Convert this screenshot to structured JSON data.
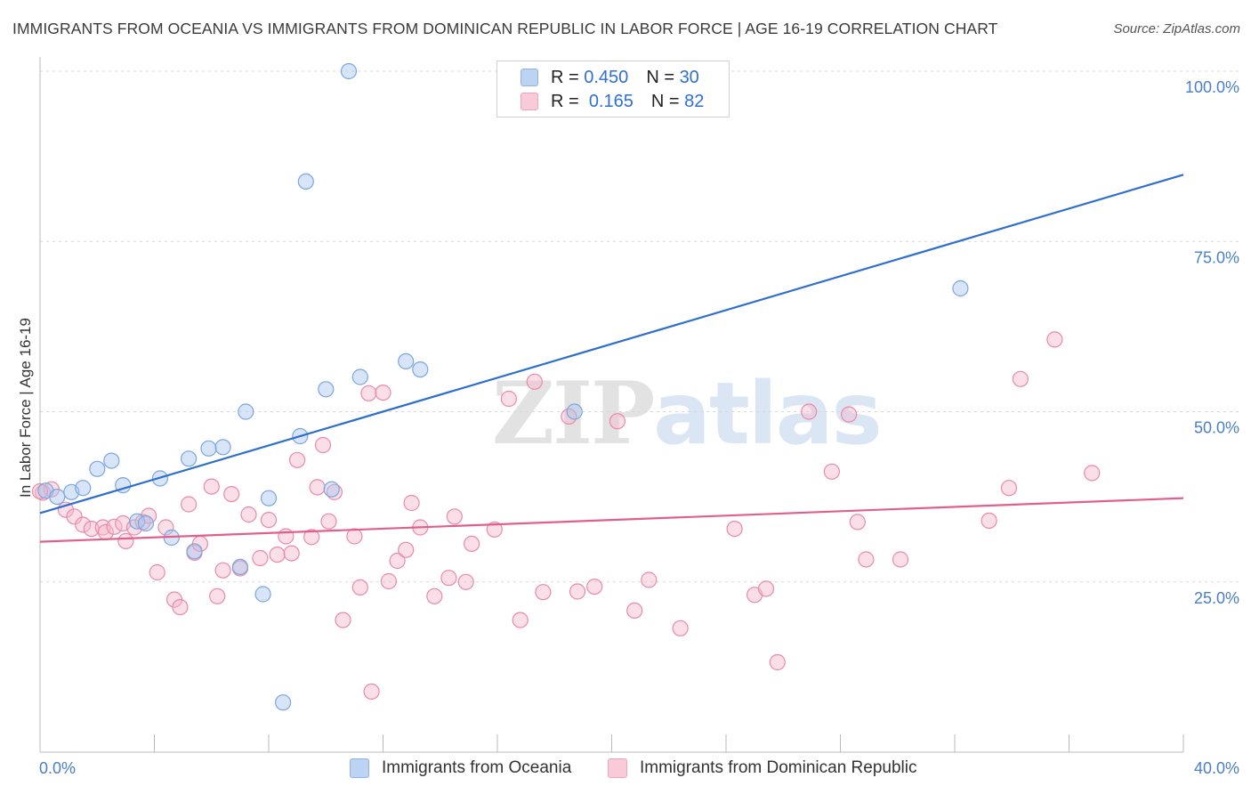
{
  "title": "IMMIGRANTS FROM OCEANIA VS IMMIGRANTS FROM DOMINICAN REPUBLIC IN LABOR FORCE | AGE 16-19 CORRELATION CHART",
  "source": "Source: ZipAtlas.com",
  "watermark": {
    "zip": "ZIP",
    "atlas": "atlas"
  },
  "legend": {
    "rows": [
      {
        "r_label": "R = ",
        "r_value": "0.450",
        "n_label": "N = ",
        "n_value": "30"
      },
      {
        "r_label": "R = ",
        "r_value": "0.165",
        "n_label": "N = ",
        "n_value": "82"
      }
    ]
  },
  "chart_data": {
    "type": "scatter",
    "title": "IMMIGRANTS FROM OCEANIA VS IMMIGRANTS FROM DOMINICAN REPUBLIC IN LABOR FORCE | AGE 16-19 CORRELATION CHART",
    "xlabel": "",
    "ylabel": "In Labor Force | Age 16-19",
    "xlim": [
      0,
      40
    ],
    "ylim": [
      0,
      102
    ],
    "x_tick_labels": [
      "0.0%",
      "40.0%"
    ],
    "y_ticks": [
      25,
      50,
      75,
      100
    ],
    "y_tick_labels": [
      "25.0%",
      "50.0%",
      "75.0%",
      "100.0%"
    ],
    "grid": true,
    "legend_position": "top-center",
    "series": [
      {
        "name": "Immigrants from Oceania",
        "color": "#a8c6ef",
        "stroke": "#7aa6de",
        "trend_color": "#2e6fce",
        "trend": {
          "x": [
            0,
            40
          ],
          "y": [
            35.1,
            84.8
          ]
        },
        "points": [
          [
            0.2,
            38.4
          ],
          [
            0.6,
            37.5
          ],
          [
            1.1,
            38.2
          ],
          [
            1.5,
            38.8
          ],
          [
            2.0,
            41.6
          ],
          [
            2.5,
            42.8
          ],
          [
            2.9,
            39.2
          ],
          [
            3.4,
            33.9
          ],
          [
            3.7,
            33.6
          ],
          [
            4.2,
            40.2
          ],
          [
            4.6,
            31.5
          ],
          [
            5.2,
            43.1
          ],
          [
            5.4,
            29.5
          ],
          [
            5.9,
            44.6
          ],
          [
            6.4,
            44.8
          ],
          [
            7.0,
            27.2
          ],
          [
            7.2,
            50.0
          ],
          [
            7.8,
            23.2
          ],
          [
            8.0,
            37.3
          ],
          [
            9.1,
            46.4
          ],
          [
            9.3,
            83.8
          ],
          [
            10.0,
            53.3
          ],
          [
            10.2,
            38.6
          ],
          [
            10.8,
            100.0
          ],
          [
            11.2,
            55.1
          ],
          [
            12.8,
            57.4
          ],
          [
            13.3,
            56.2
          ],
          [
            18.7,
            50.0
          ],
          [
            32.2,
            68.1
          ],
          [
            8.5,
            7.3
          ]
        ]
      },
      {
        "name": "Immigrants from Dominican Republic",
        "color": "#f5b9cc",
        "stroke": "#e98aa8",
        "trend_color": "#e0608a",
        "trend": {
          "x": [
            0,
            40
          ],
          "y": [
            30.9,
            37.3
          ]
        },
        "points": [
          [
            0.1,
            38.1
          ],
          [
            0.4,
            38.6
          ],
          [
            0.9,
            35.6
          ],
          [
            1.2,
            34.6
          ],
          [
            1.5,
            33.4
          ],
          [
            1.8,
            32.8
          ],
          [
            2.2,
            33.0
          ],
          [
            2.3,
            32.3
          ],
          [
            2.6,
            33.1
          ],
          [
            2.9,
            33.6
          ],
          [
            3.0,
            31.0
          ],
          [
            3.3,
            33.0
          ],
          [
            3.6,
            33.8
          ],
          [
            3.8,
            34.7
          ],
          [
            4.1,
            26.4
          ],
          [
            4.4,
            33.0
          ],
          [
            4.7,
            22.4
          ],
          [
            4.9,
            21.3
          ],
          [
            5.2,
            36.4
          ],
          [
            5.4,
            29.3
          ],
          [
            5.6,
            30.6
          ],
          [
            6.0,
            39.0
          ],
          [
            6.2,
            22.9
          ],
          [
            6.4,
            26.7
          ],
          [
            6.7,
            37.9
          ],
          [
            7.0,
            27.0
          ],
          [
            7.3,
            34.9
          ],
          [
            7.7,
            28.5
          ],
          [
            8.0,
            34.1
          ],
          [
            8.3,
            29.0
          ],
          [
            8.6,
            31.7
          ],
          [
            8.8,
            29.2
          ],
          [
            9.0,
            42.9
          ],
          [
            9.5,
            31.6
          ],
          [
            9.7,
            38.9
          ],
          [
            9.9,
            45.1
          ],
          [
            10.1,
            33.9
          ],
          [
            10.3,
            38.2
          ],
          [
            10.6,
            19.4
          ],
          [
            11.0,
            31.7
          ],
          [
            11.2,
            24.2
          ],
          [
            11.5,
            52.7
          ],
          [
            11.6,
            8.9
          ],
          [
            12.0,
            52.8
          ],
          [
            12.2,
            25.1
          ],
          [
            12.5,
            28.1
          ],
          [
            12.8,
            29.7
          ],
          [
            13.0,
            36.6
          ],
          [
            13.3,
            33.0
          ],
          [
            13.8,
            22.9
          ],
          [
            14.3,
            25.6
          ],
          [
            14.5,
            34.6
          ],
          [
            14.9,
            25.0
          ],
          [
            15.1,
            30.6
          ],
          [
            15.9,
            32.7
          ],
          [
            16.4,
            51.9
          ],
          [
            16.8,
            19.4
          ],
          [
            17.3,
            54.4
          ],
          [
            17.6,
            23.5
          ],
          [
            18.5,
            49.3
          ],
          [
            18.8,
            23.6
          ],
          [
            19.4,
            24.3
          ],
          [
            20.2,
            48.6
          ],
          [
            20.8,
            20.8
          ],
          [
            21.3,
            25.3
          ],
          [
            22.4,
            18.2
          ],
          [
            24.3,
            32.8
          ],
          [
            25.0,
            23.1
          ],
          [
            25.4,
            24.0
          ],
          [
            25.8,
            13.2
          ],
          [
            26.9,
            50.0
          ],
          [
            27.7,
            41.2
          ],
          [
            28.3,
            49.6
          ],
          [
            28.6,
            33.8
          ],
          [
            28.9,
            28.3
          ],
          [
            30.1,
            28.3
          ],
          [
            33.2,
            34.0
          ],
          [
            33.9,
            38.8
          ],
          [
            34.3,
            54.8
          ],
          [
            35.5,
            60.6
          ],
          [
            36.8,
            41.0
          ],
          [
            0.0,
            38.3
          ]
        ]
      }
    ]
  }
}
